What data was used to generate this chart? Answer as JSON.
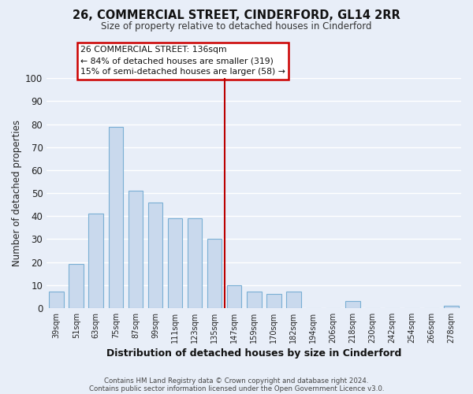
{
  "title": "26, COMMERCIAL STREET, CINDERFORD, GL14 2RR",
  "subtitle": "Size of property relative to detached houses in Cinderford",
  "xlabel": "Distribution of detached houses by size in Cinderford",
  "ylabel": "Number of detached properties",
  "bar_labels": [
    "39sqm",
    "51sqm",
    "63sqm",
    "75sqm",
    "87sqm",
    "99sqm",
    "111sqm",
    "123sqm",
    "135sqm",
    "147sqm",
    "159sqm",
    "170sqm",
    "182sqm",
    "194sqm",
    "206sqm",
    "218sqm",
    "230sqm",
    "242sqm",
    "254sqm",
    "266sqm",
    "278sqm"
  ],
  "bar_values": [
    7,
    19,
    41,
    79,
    51,
    46,
    39,
    39,
    30,
    10,
    7,
    6,
    7,
    0,
    0,
    3,
    0,
    0,
    0,
    0,
    1
  ],
  "bar_color": "#c9d9ed",
  "bar_edgecolor": "#7aafd4",
  "ylim": [
    0,
    100
  ],
  "vline_x_idx": 8,
  "vline_color": "#bb0000",
  "annotation_title": "26 COMMERCIAL STREET: 136sqm",
  "annotation_line1": "← 84% of detached houses are smaller (319)",
  "annotation_line2": "15% of semi-detached houses are larger (58) →",
  "annotation_box_edgecolor": "#cc0000",
  "fig_bg_color": "#e8eef8",
  "ax_bg_color": "#e8eef8",
  "grid_color": "#ffffff",
  "footer1": "Contains HM Land Registry data © Crown copyright and database right 2024.",
  "footer2": "Contains public sector information licensed under the Open Government Licence v3.0."
}
